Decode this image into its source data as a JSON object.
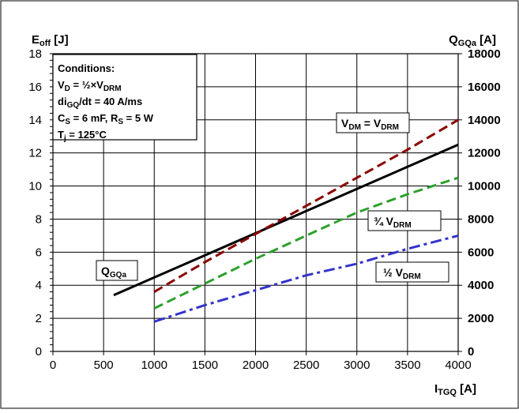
{
  "chart_data": {
    "type": "line",
    "xlabel": "I",
    "xlabel_sub": "TGQ",
    "xlabel_unit": " [A]",
    "ylabel": "E",
    "ylabel_sub": "off",
    "ylabel_unit": "  [J]",
    "y2label": "Q",
    "y2label_sub": "GQa",
    "y2label_unit": " [A]",
    "xlim": [
      0,
      4000
    ],
    "ylim": [
      0,
      18
    ],
    "y2lim": [
      0,
      18000
    ],
    "x_ticks": [
      0,
      500,
      1000,
      1500,
      2000,
      2500,
      3000,
      3500,
      4000
    ],
    "y_ticks": [
      0,
      2,
      4,
      6,
      8,
      10,
      12,
      14,
      16,
      18
    ],
    "y2_ticks": [
      0,
      2000,
      4000,
      6000,
      8000,
      10000,
      12000,
      14000,
      16000,
      18000
    ],
    "grid": true,
    "series": [
      {
        "label": "QGQa",
        "axis": "right",
        "style": "solid",
        "color": "#000000",
        "x": [
          600,
          4000
        ],
        "y": [
          3400,
          12500
        ]
      },
      {
        "label": "VDRM",
        "axis": "left",
        "style": "dash",
        "color": "#8b0000",
        "x": [
          1000,
          1500,
          2000,
          2500,
          3000,
          3500,
          4000
        ],
        "y": [
          3.6,
          5.4,
          7.1,
          8.8,
          10.5,
          12.2,
          14.0
        ]
      },
      {
        "label": "3/4 VDRM",
        "axis": "left",
        "style": "dash",
        "color": "#2ca02c",
        "x": [
          1000,
          1500,
          2000,
          2500,
          3000,
          3500,
          4000
        ],
        "y": [
          2.6,
          4.1,
          5.6,
          7.0,
          8.4,
          9.5,
          10.5
        ]
      },
      {
        "label": "1/2 VDRM",
        "axis": "left",
        "style": "dashdot",
        "color": "#3333cc",
        "x": [
          1000,
          1500,
          2000,
          2500,
          3000,
          3500,
          4000
        ],
        "y": [
          1.8,
          2.8,
          3.7,
          4.6,
          5.3,
          6.2,
          7.0
        ]
      }
    ],
    "annotations": {
      "qgqa": {
        "main": "Q",
        "sub": "GQa"
      },
      "vdm": {
        "v1": "V",
        "s1": "DM",
        "mid": " = V",
        "s2": "DRM"
      },
      "three_quarter": {
        "pre": "¾ V",
        "sub": "DRM"
      },
      "half": {
        "pre": "½ V",
        "sub": "DRM"
      }
    },
    "conditions": {
      "title": "Conditions:",
      "line1": {
        "a": "V",
        "as": "D",
        "b": " = ½×V",
        "bs": "DRM"
      },
      "line2": {
        "a": "di",
        "as": "GQ",
        "b": "/dt = 40 A/ms"
      },
      "line3": {
        "a": "C",
        "as": "S",
        "b": " = 6 mF, R",
        "bs": "S",
        "c": " = 5 W"
      },
      "line4": {
        "a": "T",
        "as": "j",
        "b": " = 125°C"
      }
    }
  }
}
